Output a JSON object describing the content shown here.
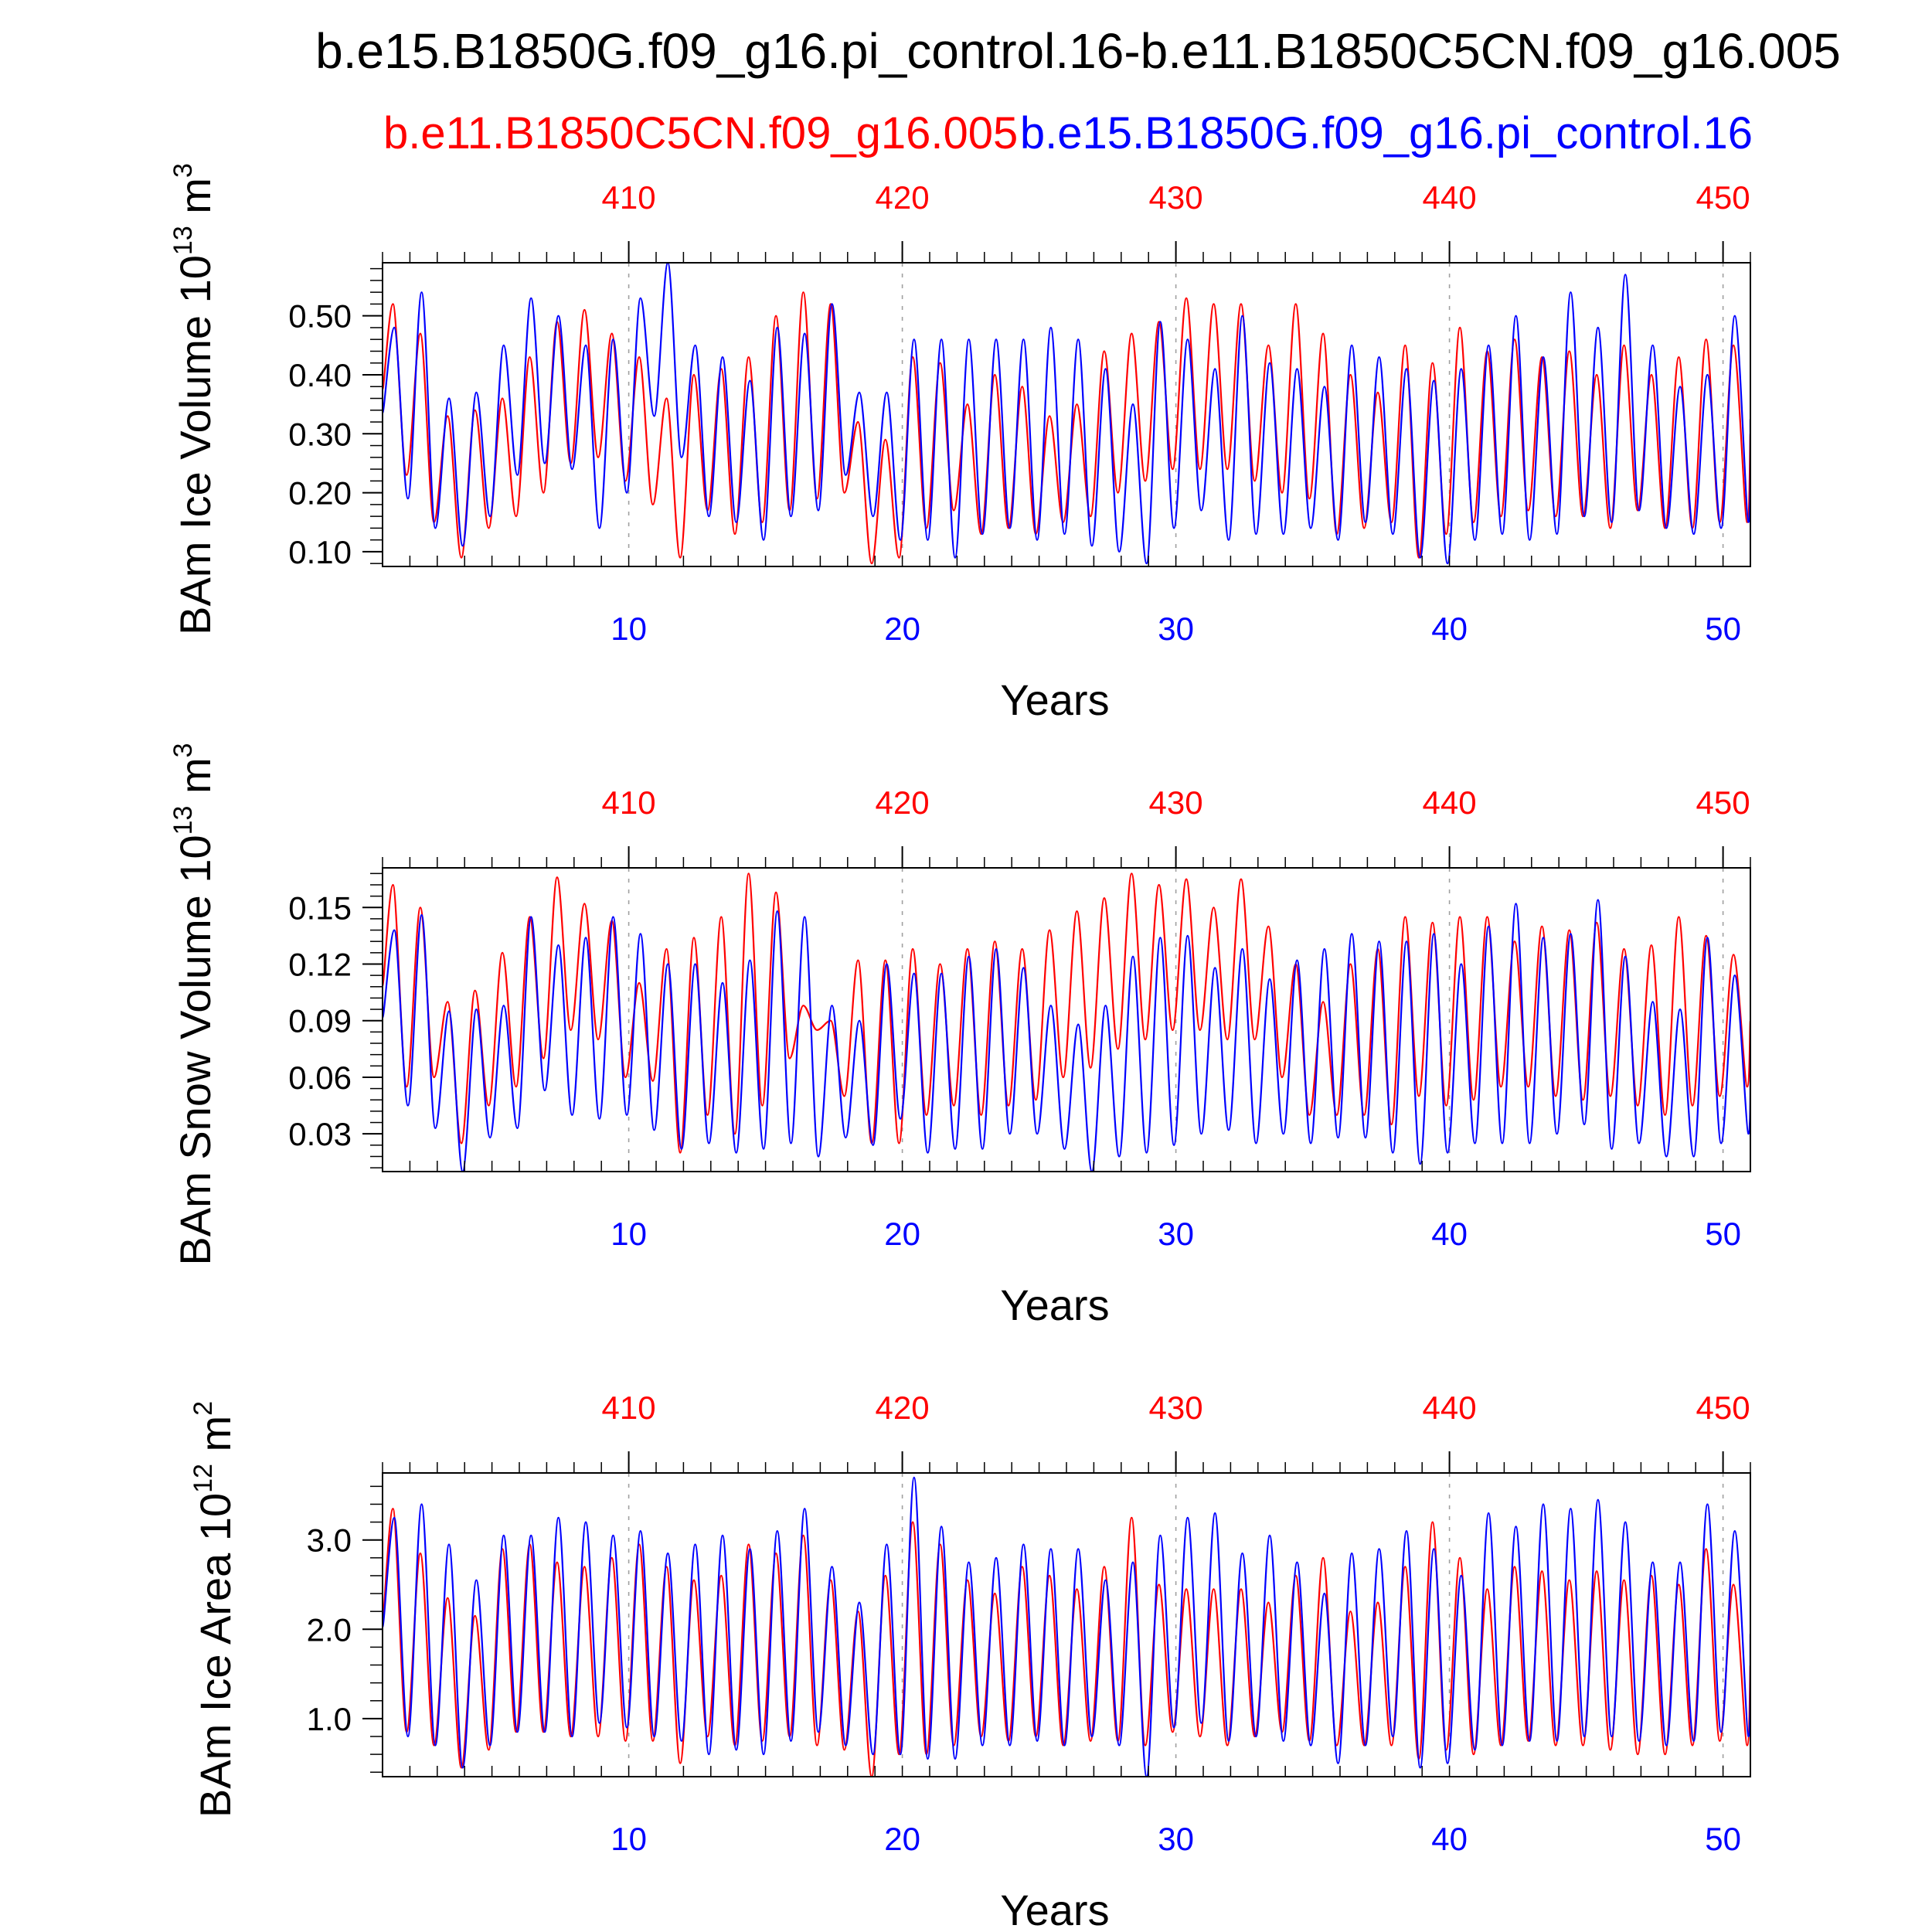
{
  "title": "b.e15.B1850G.f09_g16.pi_control.16-b.e11.B1850C5CN.f09_g16.005",
  "legend": {
    "left": {
      "text": "b.e11.B1850C5CN.f09_g16.005",
      "color": "#ff0000"
    },
    "right": {
      "text": "b.e15.B1850G.f09_g16.pi_control.16",
      "color": "#0000ff"
    }
  },
  "colors": {
    "series_a": "#ff0000",
    "series_b": "#0000ff",
    "axis": "#000000",
    "grid": "#a0a0a0"
  },
  "chart_data": [
    {
      "type": "line",
      "ylabel": "BAm Ice Volume 10",
      "ylabel_sup": "13",
      "ylabel_unit": " m",
      "ylabel_unit_sup": "3",
      "xlabel": "Years",
      "xlim": [
        1,
        51
      ],
      "ylim": [
        0.075,
        0.59
      ],
      "yticks": [
        0.1,
        0.2,
        0.3,
        0.4,
        0.5
      ],
      "ytick_labels": [
        "0.10",
        "0.20",
        "0.30",
        "0.40",
        "0.50"
      ],
      "ytick_minor_step": 0.02,
      "xticks_bottom": [
        10,
        20,
        30,
        40,
        50
      ],
      "xtick_labels_bottom": [
        "10",
        "20",
        "30",
        "40",
        "50"
      ],
      "xtick_labels_top": [
        "410",
        "420",
        "430",
        "440",
        "450"
      ],
      "series": [
        {
          "name": "b.e11.B1850C5CN.f09_g16.005",
          "color": "#ff0000",
          "max_values": [
            0.52,
            0.47,
            0.33,
            0.34,
            0.36,
            0.43,
            0.49,
            0.51,
            0.47,
            0.43,
            0.36,
            0.4,
            0.41,
            0.43,
            0.5,
            0.54,
            0.52,
            0.32,
            0.29,
            0.43,
            0.42,
            0.35,
            0.4,
            0.38,
            0.33,
            0.35,
            0.44,
            0.47,
            0.49,
            0.53,
            0.52,
            0.52,
            0.45,
            0.52,
            0.47,
            0.4,
            0.37,
            0.45,
            0.42,
            0.48,
            0.44,
            0.46,
            0.43,
            0.44,
            0.4,
            0.45,
            0.4,
            0.43,
            0.46,
            0.45
          ],
          "min_values": [
            0.23,
            0.15,
            0.09,
            0.14,
            0.16,
            0.2,
            0.25,
            0.26,
            0.22,
            0.18,
            0.09,
            0.17,
            0.13,
            0.15,
            0.17,
            0.19,
            0.2,
            0.08,
            0.09,
            0.14,
            0.17,
            0.13,
            0.14,
            0.13,
            0.15,
            0.16,
            0.2,
            0.22,
            0.24,
            0.24,
            0.24,
            0.22,
            0.2,
            0.19,
            0.13,
            0.14,
            0.15,
            0.09,
            0.13,
            0.15,
            0.16,
            0.17,
            0.16,
            0.16,
            0.14,
            0.17,
            0.14,
            0.14,
            0.15,
            0.15
          ]
        },
        {
          "name": "b.e15.B1850G.f09_g16.pi_control.16",
          "color": "#0000ff",
          "max_values": [
            0.48,
            0.54,
            0.36,
            0.37,
            0.45,
            0.53,
            0.5,
            0.45,
            0.46,
            0.53,
            0.59,
            0.45,
            0.43,
            0.39,
            0.48,
            0.47,
            0.52,
            0.37,
            0.37,
            0.46,
            0.46,
            0.46,
            0.46,
            0.46,
            0.48,
            0.46,
            0.41,
            0.35,
            0.49,
            0.46,
            0.41,
            0.5,
            0.42,
            0.41,
            0.38,
            0.45,
            0.43,
            0.41,
            0.39,
            0.41,
            0.45,
            0.5,
            0.43,
            0.54,
            0.48,
            0.57,
            0.45,
            0.38,
            0.4,
            0.5
          ],
          "min_values": [
            0.19,
            0.14,
            0.11,
            0.16,
            0.23,
            0.25,
            0.24,
            0.14,
            0.2,
            0.33,
            0.26,
            0.16,
            0.15,
            0.12,
            0.16,
            0.17,
            0.23,
            0.16,
            0.12,
            0.12,
            0.09,
            0.13,
            0.14,
            0.12,
            0.13,
            0.11,
            0.1,
            0.08,
            0.14,
            0.17,
            0.12,
            0.13,
            0.13,
            0.14,
            0.12,
            0.15,
            0.13,
            0.09,
            0.08,
            0.12,
            0.13,
            0.12,
            0.13,
            0.16,
            0.15,
            0.17,
            0.14,
            0.13,
            0.14,
            0.15
          ]
        }
      ]
    },
    {
      "type": "line",
      "ylabel": "BAm Snow Volume 10",
      "ylabel_sup": "13",
      "ylabel_unit": " m",
      "ylabel_unit_sup": "3",
      "xlabel": "Years",
      "xlim": [
        1,
        51
      ],
      "ylim": [
        0.01,
        0.171
      ],
      "yticks": [
        0.03,
        0.06,
        0.09,
        0.12,
        0.15
      ],
      "ytick_labels": [
        "0.03",
        "0.06",
        "0.09",
        "0.12",
        "0.15"
      ],
      "ytick_minor_step": 0.006,
      "xticks_bottom": [
        10,
        20,
        30,
        40,
        50
      ],
      "xtick_labels_bottom": [
        "10",
        "20",
        "30",
        "40",
        "50"
      ],
      "xtick_labels_top": [
        "410",
        "420",
        "430",
        "440",
        "450"
      ],
      "series": [
        {
          "name": "b.e11.B1850C5CN.f09_g16.005",
          "color": "#ff0000",
          "max_values": [
            0.162,
            0.15,
            0.1,
            0.106,
            0.126,
            0.145,
            0.166,
            0.152,
            0.143,
            0.11,
            0.128,
            0.134,
            0.145,
            0.168,
            0.158,
            0.098,
            0.09,
            0.122,
            0.122,
            0.128,
            0.12,
            0.128,
            0.132,
            0.128,
            0.138,
            0.148,
            0.155,
            0.168,
            0.162,
            0.165,
            0.15,
            0.165,
            0.14,
            0.12,
            0.1,
            0.12,
            0.128,
            0.145,
            0.142,
            0.145,
            0.145,
            0.132,
            0.14,
            0.138,
            0.142,
            0.128,
            0.13,
            0.145,
            0.135,
            0.125
          ],
          "min_values": [
            0.055,
            0.06,
            0.025,
            0.045,
            0.055,
            0.07,
            0.085,
            0.08,
            0.06,
            0.058,
            0.02,
            0.04,
            0.03,
            0.045,
            0.07,
            0.085,
            0.05,
            0.025,
            0.025,
            0.04,
            0.045,
            0.04,
            0.045,
            0.048,
            0.06,
            0.065,
            0.075,
            0.08,
            0.085,
            0.085,
            0.08,
            0.08,
            0.06,
            0.04,
            0.04,
            0.04,
            0.035,
            0.05,
            0.045,
            0.048,
            0.055,
            0.055,
            0.05,
            0.048,
            0.05,
            0.045,
            0.04,
            0.045,
            0.05,
            0.055
          ]
        },
        {
          "name": "b.e15.B1850G.f09_g16.pi_control.16",
          "color": "#0000ff",
          "max_values": [
            0.138,
            0.146,
            0.095,
            0.096,
            0.098,
            0.145,
            0.13,
            0.134,
            0.145,
            0.136,
            0.12,
            0.12,
            0.11,
            0.122,
            0.148,
            0.145,
            0.098,
            0.09,
            0.12,
            0.115,
            0.115,
            0.124,
            0.128,
            0.118,
            0.098,
            0.088,
            0.098,
            0.124,
            0.134,
            0.135,
            0.118,
            0.128,
            0.112,
            0.122,
            0.128,
            0.136,
            0.132,
            0.132,
            0.136,
            0.12,
            0.14,
            0.152,
            0.134,
            0.136,
            0.154,
            0.124,
            0.1,
            0.096,
            0.134,
            0.114
          ],
          "min_values": [
            0.045,
            0.033,
            0.01,
            0.028,
            0.033,
            0.053,
            0.04,
            0.038,
            0.04,
            0.032,
            0.022,
            0.025,
            0.02,
            0.022,
            0.025,
            0.018,
            0.028,
            0.024,
            0.038,
            0.02,
            0.022,
            0.022,
            0.03,
            0.03,
            0.022,
            0.01,
            0.018,
            0.02,
            0.024,
            0.03,
            0.032,
            0.025,
            0.03,
            0.025,
            0.028,
            0.028,
            0.02,
            0.014,
            0.02,
            0.025,
            0.025,
            0.025,
            0.03,
            0.035,
            0.022,
            0.025,
            0.018,
            0.018,
            0.025,
            0.03
          ]
        }
      ]
    },
    {
      "type": "line",
      "ylabel": "BAm Ice Area 10",
      "ylabel_sup": "12",
      "ylabel_unit": " m",
      "ylabel_unit_sup": "2",
      "xlabel": "Years",
      "xlim": [
        1,
        51
      ],
      "ylim": [
        0.35,
        3.75
      ],
      "yticks": [
        1.0,
        2.0,
        3.0
      ],
      "ytick_labels": [
        "1.0",
        "2.0",
        "3.0"
      ],
      "ytick_minor_step": 0.2,
      "xticks_bottom": [
        10,
        20,
        30,
        40,
        50
      ],
      "xtick_labels_bottom": [
        "10",
        "20",
        "30",
        "40",
        "50"
      ],
      "xtick_labels_top": [
        "410",
        "420",
        "430",
        "440",
        "450"
      ],
      "series": [
        {
          "name": "b.e11.B1850C5CN.f09_g16.005",
          "color": "#ff0000",
          "max_values": [
            3.35,
            2.85,
            2.35,
            2.15,
            2.9,
            2.95,
            2.75,
            2.7,
            2.8,
            2.95,
            2.7,
            2.55,
            2.6,
            2.95,
            2.85,
            3.05,
            2.55,
            2.2,
            2.6,
            3.2,
            2.95,
            2.55,
            2.4,
            2.7,
            2.6,
            2.45,
            2.7,
            3.25,
            2.5,
            2.45,
            2.45,
            2.45,
            2.3,
            2.6,
            2.8,
            2.2,
            2.3,
            2.7,
            3.2,
            2.8,
            2.45,
            2.7,
            2.65,
            2.55,
            2.65,
            2.55,
            2.6,
            2.5,
            2.9,
            2.5
          ],
          "min_values": [
            0.85,
            0.7,
            0.45,
            0.65,
            0.85,
            0.85,
            0.8,
            0.8,
            0.75,
            0.75,
            0.5,
            0.8,
            0.7,
            0.75,
            0.8,
            0.7,
            0.65,
            0.35,
            0.6,
            0.6,
            0.7,
            0.8,
            0.75,
            0.8,
            0.7,
            0.75,
            0.75,
            0.7,
            0.85,
            0.8,
            0.7,
            0.8,
            0.85,
            0.75,
            0.7,
            0.7,
            0.7,
            0.55,
            0.65,
            0.6,
            0.7,
            0.75,
            0.7,
            0.7,
            0.65,
            0.6,
            0.6,
            0.7,
            0.75,
            0.7
          ]
        },
        {
          "name": "b.e15.B1850G.f09_g16.pi_control.16",
          "color": "#0000ff",
          "max_values": [
            3.25,
            3.4,
            2.95,
            2.55,
            3.05,
            3.05,
            3.25,
            3.2,
            3.05,
            3.1,
            2.85,
            2.95,
            3.05,
            2.9,
            3.1,
            3.35,
            2.7,
            2.3,
            2.95,
            3.7,
            3.15,
            2.75,
            2.8,
            2.95,
            2.9,
            2.9,
            2.55,
            2.75,
            3.05,
            3.25,
            3.3,
            2.85,
            3.05,
            2.75,
            2.4,
            2.85,
            2.9,
            3.1,
            2.9,
            2.6,
            3.3,
            3.15,
            3.4,
            3.35,
            3.45,
            3.2,
            2.75,
            2.75,
            3.4,
            3.1
          ],
          "min_values": [
            0.8,
            0.7,
            0.45,
            0.7,
            0.85,
            0.85,
            0.8,
            0.95,
            0.9,
            0.8,
            0.75,
            0.6,
            0.65,
            0.6,
            0.75,
            0.85,
            0.7,
            0.6,
            0.6,
            0.55,
            0.55,
            0.7,
            0.7,
            0.75,
            0.7,
            0.8,
            0.7,
            0.35,
            0.9,
            0.95,
            0.75,
            0.8,
            0.75,
            0.7,
            0.5,
            0.7,
            0.8,
            0.45,
            0.5,
            0.65,
            0.7,
            0.75,
            0.75,
            0.8,
            0.8,
            0.75,
            0.7,
            0.75,
            0.85,
            0.8
          ]
        }
      ]
    }
  ]
}
